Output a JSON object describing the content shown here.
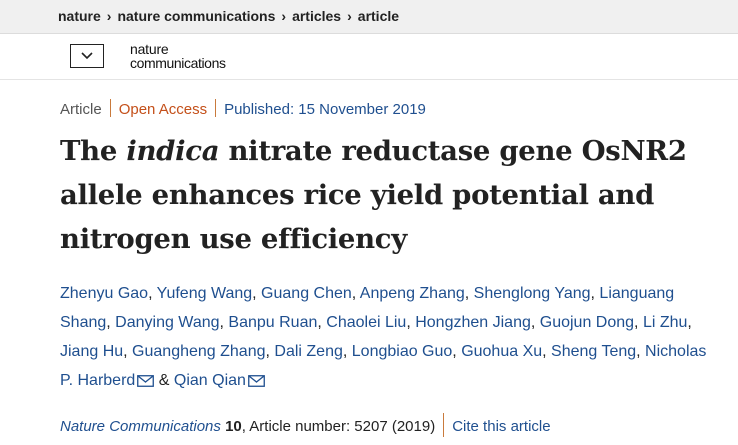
{
  "breadcrumb": {
    "items": [
      "nature",
      "nature communications",
      "articles",
      "article"
    ]
  },
  "header": {
    "logo_line1": "nature",
    "logo_line2": "communications"
  },
  "meta": {
    "type": "Article",
    "access": "Open Access",
    "published": "Published: 15 November 2019"
  },
  "title": {
    "before": "The ",
    "italic": "indica",
    "after": " nitrate reductase gene OsNR2 allele enhances rice yield potential and nitrogen use efficiency"
  },
  "authors": [
    "Zhenyu Gao",
    "Yufeng Wang",
    "Guang Chen",
    "Anpeng Zhang",
    "Shenglong Yang",
    "Lianguang Shang",
    "Danying Wang",
    "Banpu Ruan",
    "Chaolei Liu",
    "Hongzhen Jiang",
    "Guojun Dong",
    "Li Zhu",
    "Jiang Hu",
    "Guangheng Zhang",
    "Dali Zeng",
    "Longbiao Guo",
    "Guohua Xu",
    "Sheng Teng",
    "Nicholas P. Harberd",
    "Qian Qian"
  ],
  "author_separator": ", ",
  "author_last_joiner": " & ",
  "citation": {
    "journal": "Nature Communications",
    "volume": "10",
    "article_number": ", Article number: 5207 (2019)",
    "cite_link": "Cite this article"
  },
  "colors": {
    "link_blue": "#1f4f8f",
    "open_access_orange": "#c4501a",
    "divider_orange": "#c97a3c"
  },
  "icons": {
    "menu": "chevron-down-icon",
    "corresponding": "mail-icon"
  }
}
